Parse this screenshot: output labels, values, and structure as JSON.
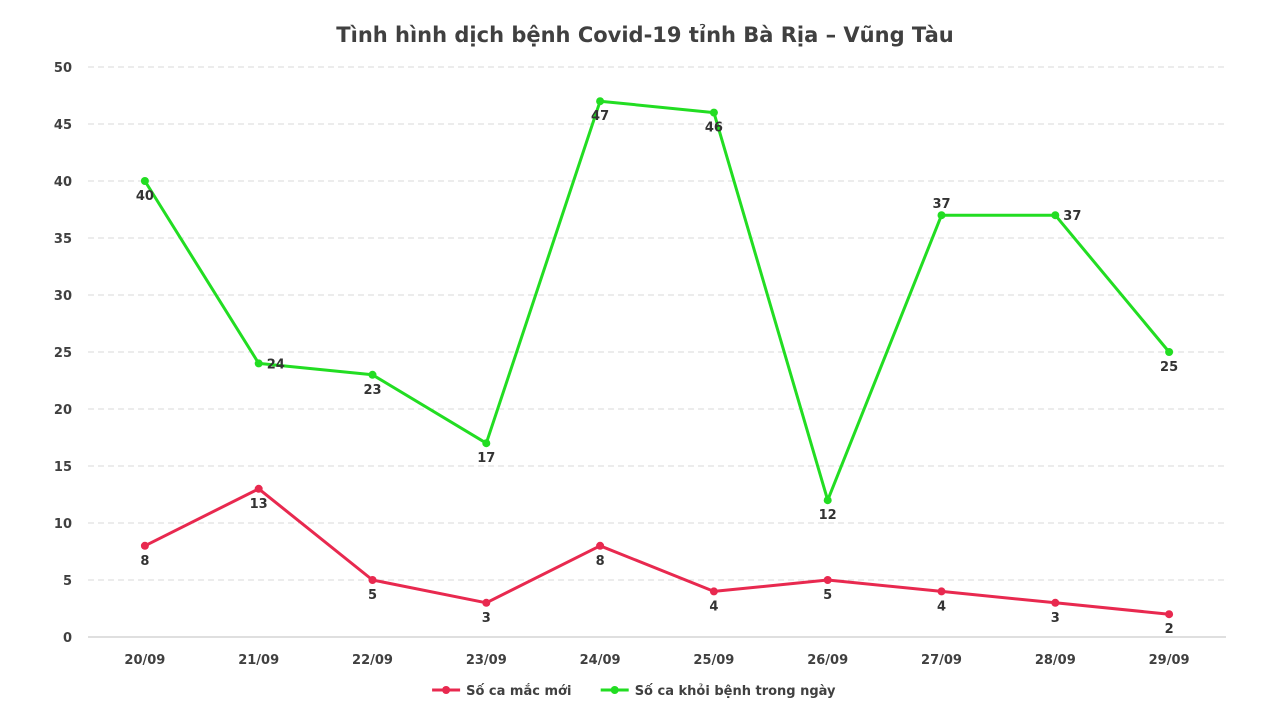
{
  "chart_data": {
    "type": "line",
    "title": "Tình hình dịch bệnh Covid-19 tỉnh Bà Rịa – Vũng Tàu",
    "categories": [
      "20/09",
      "21/09",
      "22/09",
      "23/09",
      "24/09",
      "25/09",
      "26/09",
      "27/09",
      "28/09",
      "29/09"
    ],
    "ylim": [
      0,
      50
    ],
    "yticks": [
      0,
      5,
      10,
      15,
      20,
      25,
      30,
      35,
      40,
      45,
      50
    ],
    "grid": true,
    "legend_position": "bottom",
    "series": [
      {
        "name": "Số ca mắc mới",
        "color": "#e8294f",
        "values": [
          8,
          13,
          5,
          3,
          8,
          4,
          5,
          4,
          3,
          2
        ],
        "label_pos": [
          "below",
          "below",
          "below",
          "below",
          "below",
          "below",
          "below",
          "below",
          "below",
          "below"
        ]
      },
      {
        "name": "Số ca khỏi bệnh trong ngày",
        "color": "#22dd22",
        "values": [
          40,
          24,
          23,
          17,
          47,
          46,
          12,
          37,
          37,
          25
        ],
        "label_pos": [
          "below",
          "right",
          "below",
          "below",
          "below",
          "below",
          "below",
          "above",
          "right",
          "below"
        ]
      }
    ]
  }
}
